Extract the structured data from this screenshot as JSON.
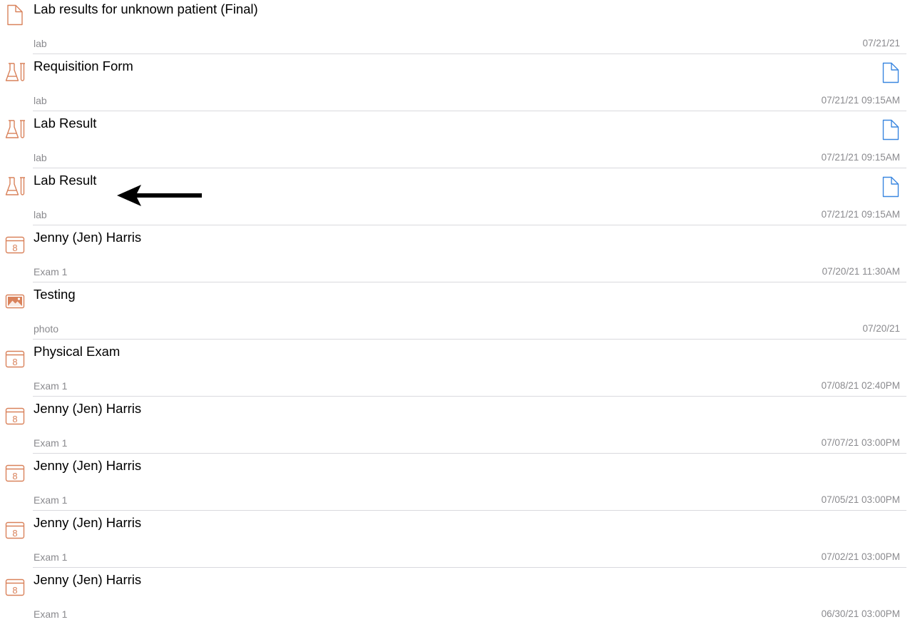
{
  "colors": {
    "accent_orange": "#d9825b",
    "doc_blue": "#3a87e0",
    "separator": "#d9d9de",
    "secondary_text": "#8a8a8e"
  },
  "records": [
    {
      "icon": "document-icon",
      "title": "Lab results for unknown patient (Final)",
      "subtitle": "lab",
      "date": "07/21/21",
      "attachment": false
    },
    {
      "icon": "lab-flask-icon",
      "title": "Requisition Form",
      "subtitle": "lab",
      "date": "07/21/21 09:15AM",
      "attachment": true
    },
    {
      "icon": "lab-flask-icon",
      "title": "Lab Result",
      "subtitle": "lab",
      "date": "07/21/21 09:15AM",
      "attachment": true
    },
    {
      "icon": "lab-flask-icon",
      "title": "Lab Result",
      "subtitle": "lab",
      "date": "07/21/21 09:15AM",
      "attachment": true
    },
    {
      "icon": "calendar-icon",
      "icon_text": "8",
      "title": "Jenny (Jen) Harris",
      "subtitle": "Exam 1",
      "date": "07/20/21 11:30AM",
      "attachment": false
    },
    {
      "icon": "photo-icon",
      "title": "Testing",
      "subtitle": "photo",
      "date": "07/20/21",
      "attachment": false
    },
    {
      "icon": "calendar-icon",
      "icon_text": "8",
      "title": "Physical Exam",
      "subtitle": "Exam 1",
      "date": "07/08/21 02:40PM",
      "attachment": false
    },
    {
      "icon": "calendar-icon",
      "icon_text": "8",
      "title": "Jenny (Jen) Harris",
      "subtitle": "Exam 1",
      "date": "07/07/21 03:00PM",
      "attachment": false
    },
    {
      "icon": "calendar-icon",
      "icon_text": "8",
      "title": "Jenny (Jen) Harris",
      "subtitle": "Exam 1",
      "date": "07/05/21 03:00PM",
      "attachment": false
    },
    {
      "icon": "calendar-icon",
      "icon_text": "8",
      "title": "Jenny (Jen) Harris",
      "subtitle": "Exam 1",
      "date": "07/02/21 03:00PM",
      "attachment": false
    },
    {
      "icon": "calendar-icon",
      "icon_text": "8",
      "title": "Jenny (Jen) Harris",
      "subtitle": "Exam 1",
      "date": "06/30/21 03:00PM",
      "attachment": false
    }
  ],
  "annotation": {
    "icon": "arrow-left-icon",
    "points_to_record": 3
  }
}
